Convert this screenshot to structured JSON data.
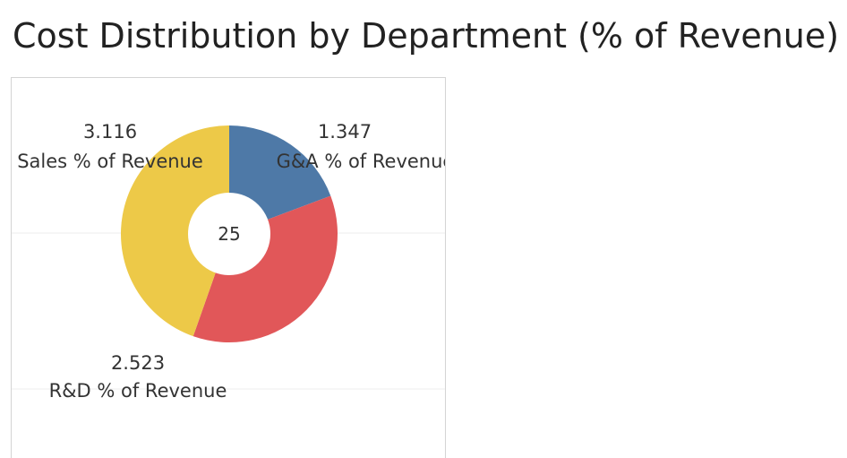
{
  "title": "Cost Distribution by Department (% of Revenue)",
  "chart_data": {
    "type": "pie",
    "center_label": "25",
    "slices": [
      {
        "category": "G&A % of Revenue",
        "value": 1.347,
        "value_label": "1.347",
        "color": "#4e79a7"
      },
      {
        "category": "R&D % of Revenue",
        "value": 2.523,
        "value_label": "2.523",
        "color": "#e15759"
      },
      {
        "category": "Sales % of Revenue",
        "value": 3.116,
        "value_label": "3.116",
        "color": "#edc948"
      }
    ],
    "grid": true
  }
}
